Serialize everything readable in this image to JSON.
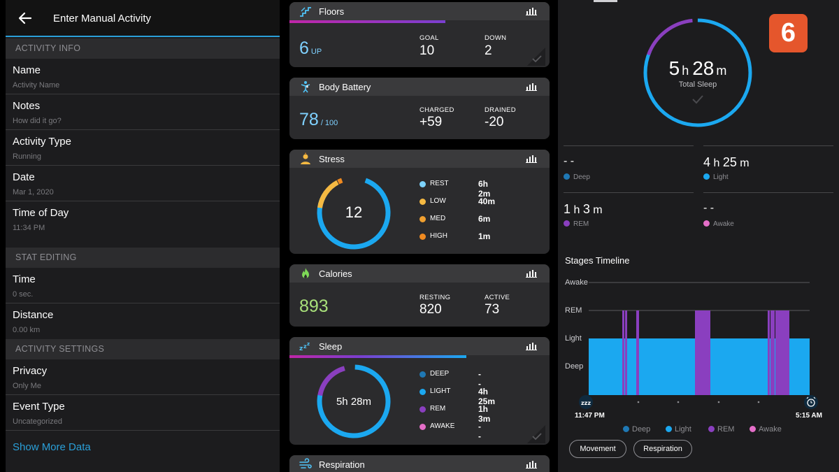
{
  "manual_activity": {
    "title": "Enter Manual Activity",
    "sections": {
      "activity_info": "ACTIVITY INFO",
      "stat_editing": "STAT EDITING",
      "activity_settings": "ACTIVITY SETTINGS"
    },
    "fields": {
      "name": {
        "label": "Name",
        "placeholder": "Activity Name"
      },
      "notes": {
        "label": "Notes",
        "placeholder": "How did it go?"
      },
      "activity_type": {
        "label": "Activity Type",
        "value": "Running"
      },
      "date": {
        "label": "Date",
        "value": "Mar 1, 2020"
      },
      "time_of_day": {
        "label": "Time of Day",
        "value": "11:34 PM"
      },
      "time": {
        "label": "Time",
        "value": "0 sec."
      },
      "distance": {
        "label": "Distance",
        "value": "0.00 km"
      },
      "privacy": {
        "label": "Privacy",
        "value": "Only Me"
      },
      "event_type": {
        "label": "Event Type",
        "value": "Uncategorized"
      }
    },
    "show_more": "Show More Data"
  },
  "summary": {
    "floors": {
      "title": "Floors",
      "value": "6",
      "unit": "UP",
      "goal_label": "GOAL",
      "goal": "10",
      "down_label": "DOWN",
      "down": "2",
      "progress": 0.6
    },
    "body_battery": {
      "title": "Body Battery",
      "value": "78",
      "unit": "/ 100",
      "charged_label": "CHARGED",
      "charged": "+59",
      "drained_label": "DRAINED",
      "drained": "-20"
    },
    "stress": {
      "title": "Stress",
      "value": "12",
      "levels": [
        {
          "name": "REST",
          "value": "6h 2m",
          "color": "#7dd3fc"
        },
        {
          "name": "LOW",
          "value": "40m",
          "color": "#f5b942"
        },
        {
          "name": "MED",
          "value": "6m",
          "color": "#f0a030"
        },
        {
          "name": "HIGH",
          "value": "1m",
          "color": "#f08a20"
        }
      ]
    },
    "calories": {
      "title": "Calories",
      "value": "893",
      "resting_label": "RESTING",
      "resting": "820",
      "active_label": "ACTIVE",
      "active": "73"
    },
    "sleep": {
      "title": "Sleep",
      "value": "5h 28m",
      "progress": 0.68,
      "stages": [
        {
          "name": "DEEP",
          "value": "- -",
          "color": "#1f78b4"
        },
        {
          "name": "LIGHT",
          "value": "4h 25m",
          "color": "#1ba8f0"
        },
        {
          "name": "REM",
          "value": "1h 3m",
          "color": "#8a3fbf"
        },
        {
          "name": "AWAKE",
          "value": "- -",
          "color": "#e46ec8"
        }
      ]
    },
    "respiration": {
      "title": "Respiration"
    }
  },
  "sleep_detail": {
    "total_hours": "5",
    "total_h_unit": "h",
    "total_minutes": "28",
    "total_m_unit": "m",
    "total_label": "Total Sleep",
    "stats": {
      "deep": {
        "value": "- -",
        "label": "Deep"
      },
      "light": {
        "hours": "4",
        "minutes": "25",
        "label": "Light"
      },
      "rem": {
        "hours": "1",
        "minutes": "3",
        "label": "REM"
      },
      "awake": {
        "value": "- -",
        "label": "Awake"
      }
    },
    "timeline_title": "Stages Timeline",
    "y_labels": [
      "Awake",
      "REM",
      "Light",
      "Deep"
    ],
    "start_time": "11:47 PM",
    "end_time": "5:15 AM",
    "legend": [
      "Deep",
      "Light",
      "REM",
      "Awake"
    ],
    "buttons": {
      "movement": "Movement",
      "respiration": "Respiration"
    },
    "colors": {
      "deep": "#1f78b4",
      "light": "#1ba8f0",
      "rem": "#8a3fbf",
      "awake": "#e46ec8"
    }
  },
  "watermark": "6"
}
